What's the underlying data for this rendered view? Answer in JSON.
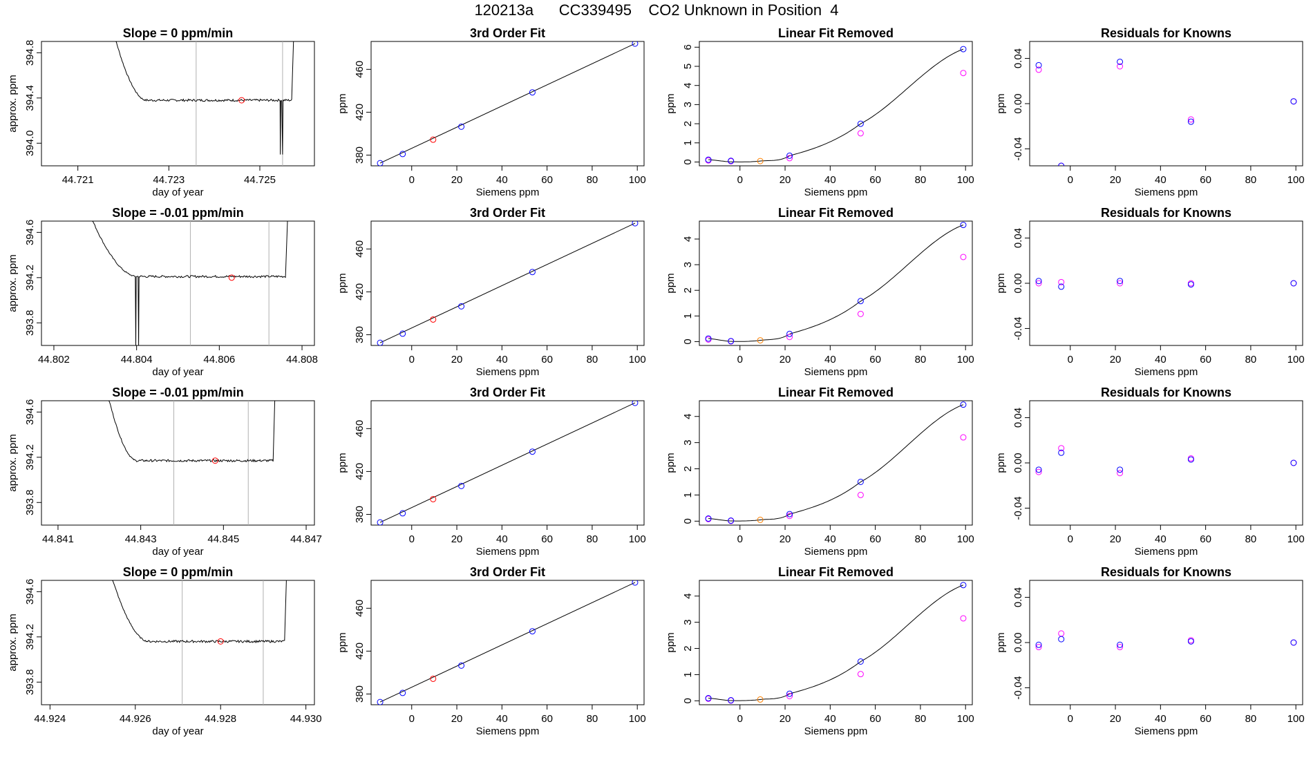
{
  "figure": {
    "title": "120213a      CC339495    CO2 Unknown in Position  4"
  },
  "colors": {
    "known_fit": "#0000ff",
    "linear_removed": "#ff00ff",
    "unknown": "#ff0000",
    "unknown_linear": "#ff8000",
    "trace": "#000000",
    "window_line": "#b0b0b0"
  },
  "chart_data": [
    {
      "type": "line",
      "row": 1,
      "title": "Slope =  0  ppm/min",
      "xlabel": "day of year",
      "ylabel": "approx. ppm",
      "xlim": [
        44.7202,
        44.7262
      ],
      "ylim": [
        393.8,
        394.9
      ],
      "xticks": [
        "44.721",
        "44.723",
        "44.725"
      ],
      "xtick_values": [
        44.721,
        44.723,
        44.725
      ],
      "yticks": [
        "394.0",
        "394.4",
        "394.8"
      ],
      "ytick_values": [
        394.0,
        394.4,
        394.8
      ],
      "window": [
        44.7236,
        44.7255
      ],
      "unknown_point": {
        "x": 44.7246,
        "y": 394.38
      },
      "trace": {
        "start": 44.7217,
        "settle_start": 44.7225,
        "end": 44.7257,
        "level": 394.38,
        "spikes": [
          [
            44.72545,
            393.9
          ],
          [
            44.7255,
            393.9
          ]
        ]
      }
    },
    {
      "type": "scatter",
      "row": 1,
      "title": "3rd Order Fit",
      "xlabel": "Siemens ppm",
      "ylabel": "ppm",
      "xlim": [
        -18,
        103
      ],
      "ylim": [
        370,
        486
      ],
      "xticks": [
        "0",
        "20",
        "40",
        "60",
        "80",
        "100"
      ],
      "xtick_values": [
        0,
        20,
        40,
        60,
        80,
        100
      ],
      "yticks": [
        "380",
        "420",
        "460"
      ],
      "ytick_values": [
        380,
        420,
        460
      ],
      "knowns": [
        [
          -14,
          372.5
        ],
        [
          -4,
          381
        ],
        [
          22,
          406.5
        ],
        [
          53.5,
          438.5
        ],
        [
          99,
          484
        ]
      ],
      "unknown": [
        [
          9.5,
          394.4
        ]
      ],
      "fit_line": [
        [
          -14,
          372.5
        ],
        [
          99,
          484
        ]
      ]
    },
    {
      "type": "scatter",
      "row": 1,
      "title": "Linear Fit Removed",
      "xlabel": "Siemens ppm",
      "ylabel": "ppm",
      "xlim": [
        -18,
        103
      ],
      "ylim": [
        -0.2,
        6.3
      ],
      "xticks": [
        "0",
        "20",
        "40",
        "60",
        "80",
        "100"
      ],
      "xtick_values": [
        0,
        20,
        40,
        60,
        80,
        100
      ],
      "yticks": [
        "0",
        "1",
        "2",
        "3",
        "4",
        "5",
        "6"
      ],
      "ytick_values": [
        0,
        1,
        2,
        3,
        4,
        5,
        6
      ],
      "knowns": [
        [
          -14,
          0.12
        ],
        [
          -4,
          0.06
        ],
        [
          22,
          0.33
        ],
        [
          53.5,
          2.0
        ],
        [
          99,
          5.9
        ]
      ],
      "knowns_linear_removed": [
        [
          -14,
          0.08
        ],
        [
          -4,
          0.04
        ],
        [
          22,
          0.2
        ],
        [
          53.5,
          1.5
        ],
        [
          99,
          4.65
        ]
      ],
      "unknown": [
        [
          9,
          0.05
        ]
      ],
      "curve": [
        [
          -14,
          0.12
        ],
        [
          -4,
          0.01
        ],
        [
          9,
          0.05
        ],
        [
          22,
          0.33
        ],
        [
          53.5,
          2.0
        ],
        [
          99,
          5.9
        ]
      ]
    },
    {
      "type": "scatter",
      "row": 1,
      "title": "Residuals for Knowns",
      "xlabel": "Siemens ppm",
      "ylabel": "ppm",
      "xlim": [
        -18,
        103
      ],
      "ylim": [
        -0.055,
        0.055
      ],
      "xticks": [
        "0",
        "20",
        "40",
        "60",
        "80",
        "100"
      ],
      "xtick_values": [
        0,
        20,
        40,
        60,
        80,
        100
      ],
      "yticks": [
        "-0.04",
        "0.00",
        "0.04"
      ],
      "ytick_values": [
        -0.04,
        0.0,
        0.04
      ],
      "knowns": [
        [
          -14,
          0.034
        ],
        [
          -4,
          -0.055
        ],
        [
          22,
          0.037
        ],
        [
          53.5,
          -0.016
        ],
        [
          99,
          0.002
        ]
      ],
      "knowns_linear_removed": [
        [
          -14,
          0.03
        ],
        [
          -4,
          -0.055
        ],
        [
          22,
          0.033
        ],
        [
          53.5,
          -0.014
        ],
        [
          99,
          0.002
        ]
      ]
    },
    {
      "type": "line",
      "row": 2,
      "title": "Slope =  -0.01  ppm/min",
      "xlabel": "day of year",
      "ylabel": "approx. ppm",
      "xlim": [
        44.8017,
        44.8083
      ],
      "ylim": [
        393.6,
        394.7
      ],
      "xticks": [
        "44.802",
        "44.804",
        "44.806",
        "44.808"
      ],
      "xtick_values": [
        44.802,
        44.804,
        44.806,
        44.808
      ],
      "yticks": [
        "393.8",
        "394.2",
        "394.6"
      ],
      "ytick_values": [
        393.8,
        394.2,
        394.6
      ],
      "window": [
        44.8053,
        44.8072
      ],
      "unknown_point": {
        "x": 44.8063,
        "y": 394.2
      },
      "trace": {
        "start": 44.8027,
        "settle_start": 44.804,
        "end": 44.8076,
        "level": 394.21,
        "spikes": [
          [
            44.80398,
            393.6
          ],
          [
            44.80405,
            393.6
          ]
        ]
      }
    },
    {
      "type": "scatter",
      "row": 2,
      "title": "3rd Order Fit",
      "xlabel": "Siemens ppm",
      "ylabel": "ppm",
      "xlim": [
        -18,
        103
      ],
      "ylim": [
        370,
        486
      ],
      "xticks": [
        "0",
        "20",
        "40",
        "60",
        "80",
        "100"
      ],
      "xtick_values": [
        0,
        20,
        40,
        60,
        80,
        100
      ],
      "yticks": [
        "380",
        "420",
        "460"
      ],
      "ytick_values": [
        380,
        420,
        460
      ],
      "knowns": [
        [
          -14,
          372.5
        ],
        [
          -4,
          381
        ],
        [
          22,
          406.5
        ],
        [
          53.5,
          438.5
        ],
        [
          99,
          484
        ]
      ],
      "unknown": [
        [
          9.5,
          394.2
        ]
      ],
      "fit_line": [
        [
          -14,
          372.5
        ],
        [
          99,
          484
        ]
      ]
    },
    {
      "type": "scatter",
      "row": 2,
      "title": "Linear Fit Removed",
      "xlabel": "Siemens ppm",
      "ylabel": "ppm",
      "xlim": [
        -18,
        103
      ],
      "ylim": [
        -0.15,
        4.7
      ],
      "xticks": [
        "0",
        "20",
        "40",
        "60",
        "80",
        "100"
      ],
      "xtick_values": [
        0,
        20,
        40,
        60,
        80,
        100
      ],
      "yticks": [
        "0",
        "1",
        "2",
        "3",
        "4"
      ],
      "ytick_values": [
        0,
        1,
        2,
        3,
        4
      ],
      "knowns": [
        [
          -14,
          0.12
        ],
        [
          -4,
          0.02
        ],
        [
          22,
          0.3
        ],
        [
          53.5,
          1.58
        ],
        [
          99,
          4.55
        ]
      ],
      "knowns_linear_removed": [
        [
          -14,
          0.08
        ],
        [
          -4,
          0.01
        ],
        [
          22,
          0.18
        ],
        [
          53.5,
          1.08
        ],
        [
          99,
          3.3
        ]
      ],
      "unknown": [
        [
          9,
          0.05
        ]
      ],
      "curve": [
        [
          -14,
          0.12
        ],
        [
          -4,
          0.01
        ],
        [
          9,
          0.05
        ],
        [
          22,
          0.3
        ],
        [
          53.5,
          1.58
        ],
        [
          99,
          4.55
        ]
      ]
    },
    {
      "type": "scatter",
      "row": 2,
      "title": "Residuals for Knowns",
      "xlabel": "Siemens ppm",
      "ylabel": "ppm",
      "xlim": [
        -18,
        103
      ],
      "ylim": [
        -0.055,
        0.055
      ],
      "xticks": [
        "0",
        "20",
        "40",
        "60",
        "80",
        "100"
      ],
      "xtick_values": [
        0,
        20,
        40,
        60,
        80,
        100
      ],
      "yticks": [
        "-0.04",
        "0.00",
        "0.04"
      ],
      "ytick_values": [
        -0.04,
        0.0,
        0.04
      ],
      "knowns": [
        [
          -14,
          0.002
        ],
        [
          -4,
          -0.003
        ],
        [
          22,
          0.002
        ],
        [
          53.5,
          -0.001
        ],
        [
          99,
          0.0
        ]
      ],
      "knowns_linear_removed": [
        [
          -14,
          0.0
        ],
        [
          -4,
          0.001
        ],
        [
          22,
          0.0
        ],
        [
          53.5,
          0.0
        ],
        [
          99,
          0.0
        ]
      ]
    },
    {
      "type": "line",
      "row": 3,
      "title": "Slope =  -0.01  ppm/min",
      "xlabel": "day of year",
      "ylabel": "approx. ppm",
      "xlim": [
        44.8406,
        44.8472
      ],
      "ylim": [
        393.6,
        394.7
      ],
      "xticks": [
        "44.841",
        "44.843",
        "44.845",
        "44.847"
      ],
      "xtick_values": [
        44.841,
        44.843,
        44.845,
        44.847
      ],
      "yticks": [
        "393.8",
        "394.2",
        "394.6"
      ],
      "ytick_values": [
        393.8,
        394.2,
        394.6
      ],
      "window": [
        44.8438,
        44.8456
      ],
      "unknown_point": {
        "x": 44.8448,
        "y": 394.17
      },
      "trace": {
        "start": 44.8421,
        "settle_start": 44.8429,
        "end": 44.8462,
        "level": 394.17,
        "spikes": []
      }
    },
    {
      "type": "scatter",
      "row": 3,
      "title": "3rd Order Fit",
      "xlabel": "Siemens ppm",
      "ylabel": "ppm",
      "xlim": [
        -18,
        103
      ],
      "ylim": [
        370,
        486
      ],
      "xticks": [
        "0",
        "20",
        "40",
        "60",
        "80",
        "100"
      ],
      "xtick_values": [
        0,
        20,
        40,
        60,
        80,
        100
      ],
      "yticks": [
        "380",
        "420",
        "460"
      ],
      "ytick_values": [
        380,
        420,
        460
      ],
      "knowns": [
        [
          -14,
          372.5
        ],
        [
          -4,
          381
        ],
        [
          22,
          406.5
        ],
        [
          53.5,
          438.5
        ],
        [
          99,
          484
        ]
      ],
      "unknown": [
        [
          9.5,
          394.2
        ]
      ],
      "fit_line": [
        [
          -14,
          372.5
        ],
        [
          99,
          484
        ]
      ]
    },
    {
      "type": "scatter",
      "row": 3,
      "title": "Linear Fit Removed",
      "xlabel": "Siemens ppm",
      "ylabel": "ppm",
      "xlim": [
        -18,
        103
      ],
      "ylim": [
        -0.15,
        4.6
      ],
      "xticks": [
        "0",
        "20",
        "40",
        "60",
        "80",
        "100"
      ],
      "xtick_values": [
        0,
        20,
        40,
        60,
        80,
        100
      ],
      "yticks": [
        "0",
        "1",
        "2",
        "3",
        "4"
      ],
      "ytick_values": [
        0,
        1,
        2,
        3,
        4
      ],
      "knowns": [
        [
          -14,
          0.1
        ],
        [
          -4,
          0.02
        ],
        [
          22,
          0.27
        ],
        [
          53.5,
          1.5
        ],
        [
          99,
          4.45
        ]
      ],
      "knowns_linear_removed": [
        [
          -14,
          0.08
        ],
        [
          -4,
          0.01
        ],
        [
          22,
          0.2
        ],
        [
          53.5,
          1.0
        ],
        [
          99,
          3.2
        ]
      ],
      "unknown": [
        [
          9,
          0.05
        ]
      ],
      "curve": [
        [
          -14,
          0.1
        ],
        [
          -4,
          0.01
        ],
        [
          9,
          0.05
        ],
        [
          22,
          0.27
        ],
        [
          53.5,
          1.5
        ],
        [
          99,
          4.45
        ]
      ]
    },
    {
      "type": "scatter",
      "row": 3,
      "title": "Residuals for Knowns",
      "xlabel": "Siemens ppm",
      "ylabel": "ppm",
      "xlim": [
        -18,
        103
      ],
      "ylim": [
        -0.055,
        0.055
      ],
      "xticks": [
        "0",
        "20",
        "40",
        "60",
        "80",
        "100"
      ],
      "xtick_values": [
        0,
        20,
        40,
        60,
        80,
        100
      ],
      "yticks": [
        "-0.04",
        "0.00",
        "0.04"
      ],
      "ytick_values": [
        -0.04,
        0.0,
        0.04
      ],
      "knowns": [
        [
          -14,
          -0.006
        ],
        [
          -4,
          0.009
        ],
        [
          22,
          -0.006
        ],
        [
          53.5,
          0.003
        ],
        [
          99,
          0.0
        ]
      ],
      "knowns_linear_removed": [
        [
          -14,
          -0.008
        ],
        [
          -4,
          0.013
        ],
        [
          22,
          -0.009
        ],
        [
          53.5,
          0.004
        ],
        [
          99,
          0.0
        ]
      ]
    },
    {
      "type": "line",
      "row": 4,
      "title": "Slope =  0  ppm/min",
      "xlabel": "day of year",
      "ylabel": "approx. ppm",
      "xlim": [
        44.9238,
        44.9302
      ],
      "ylim": [
        393.6,
        394.7
      ],
      "xticks": [
        "44.924",
        "44.926",
        "44.928",
        "44.930"
      ],
      "xtick_values": [
        44.924,
        44.926,
        44.928,
        44.93
      ],
      "yticks": [
        "393.8",
        "394.2",
        "394.6"
      ],
      "ytick_values": [
        393.8,
        394.2,
        394.6
      ],
      "window": [
        44.9271,
        44.929
      ],
      "unknown_point": {
        "x": 44.928,
        "y": 394.16
      },
      "trace": {
        "start": 44.9253,
        "settle_start": 44.9263,
        "end": 44.9295,
        "level": 394.16,
        "spikes": []
      }
    },
    {
      "type": "scatter",
      "row": 4,
      "title": "3rd Order Fit",
      "xlabel": "Siemens ppm",
      "ylabel": "ppm",
      "xlim": [
        -18,
        103
      ],
      "ylim": [
        370,
        486
      ],
      "xticks": [
        "0",
        "20",
        "40",
        "60",
        "80",
        "100"
      ],
      "xtick_values": [
        0,
        20,
        40,
        60,
        80,
        100
      ],
      "yticks": [
        "380",
        "420",
        "460"
      ],
      "ytick_values": [
        380,
        420,
        460
      ],
      "knowns": [
        [
          -14,
          372.5
        ],
        [
          -4,
          381
        ],
        [
          22,
          406.5
        ],
        [
          53.5,
          438.5
        ],
        [
          99,
          484
        ]
      ],
      "unknown": [
        [
          9.5,
          394.2
        ]
      ],
      "fit_line": [
        [
          -14,
          372.5
        ],
        [
          99,
          484
        ]
      ]
    },
    {
      "type": "scatter",
      "row": 4,
      "title": "Linear Fit Removed",
      "xlabel": "Siemens ppm",
      "ylabel": "ppm",
      "xlim": [
        -18,
        103
      ],
      "ylim": [
        -0.15,
        4.6
      ],
      "xticks": [
        "0",
        "20",
        "40",
        "60",
        "80",
        "100"
      ],
      "xtick_values": [
        0,
        20,
        40,
        60,
        80,
        100
      ],
      "yticks": [
        "0",
        "1",
        "2",
        "3",
        "4"
      ],
      "ytick_values": [
        0,
        1,
        2,
        3,
        4
      ],
      "knowns": [
        [
          -14,
          0.1
        ],
        [
          -4,
          0.02
        ],
        [
          22,
          0.27
        ],
        [
          53.5,
          1.5
        ],
        [
          99,
          4.42
        ]
      ],
      "knowns_linear_removed": [
        [
          -14,
          0.08
        ],
        [
          -4,
          0.01
        ],
        [
          22,
          0.18
        ],
        [
          53.5,
          1.02
        ],
        [
          99,
          3.15
        ]
      ],
      "unknown": [
        [
          9,
          0.05
        ]
      ],
      "curve": [
        [
          -14,
          0.1
        ],
        [
          -4,
          0.01
        ],
        [
          9,
          0.05
        ],
        [
          22,
          0.27
        ],
        [
          53.5,
          1.5
        ],
        [
          99,
          4.42
        ]
      ]
    },
    {
      "type": "scatter",
      "row": 4,
      "title": "Residuals for Knowns",
      "xlabel": "Siemens ppm",
      "ylabel": "ppm",
      "xlim": [
        -18,
        103
      ],
      "ylim": [
        -0.055,
        0.055
      ],
      "xticks": [
        "0",
        "20",
        "40",
        "60",
        "80",
        "100"
      ],
      "xtick_values": [
        0,
        20,
        40,
        60,
        80,
        100
      ],
      "yticks": [
        "-0.04",
        "0.00",
        "0.04"
      ],
      "ytick_values": [
        -0.04,
        0.0,
        0.04
      ],
      "knowns": [
        [
          -14,
          -0.002
        ],
        [
          -4,
          0.003
        ],
        [
          22,
          -0.002
        ],
        [
          53.5,
          0.001
        ],
        [
          99,
          0.0
        ]
      ],
      "knowns_linear_removed": [
        [
          -14,
          -0.004
        ],
        [
          -4,
          0.008
        ],
        [
          22,
          -0.004
        ],
        [
          53.5,
          0.002
        ],
        [
          99,
          0.0
        ]
      ]
    }
  ]
}
